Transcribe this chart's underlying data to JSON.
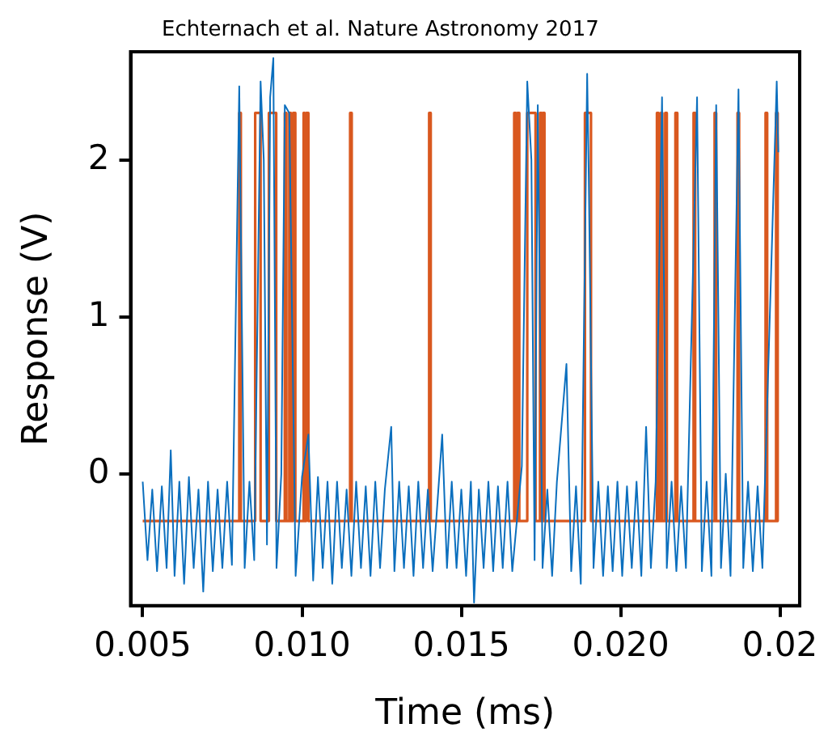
{
  "chart_data": {
    "type": "line",
    "xlabel": "Time (ms)",
    "ylabel": "Response (V)",
    "annotations": [
      "Echternach et al. Nature Astronomy 2017"
    ],
    "xlim": [
      0.00462,
      0.02562
    ],
    "ylim": [
      -0.84,
      2.69
    ],
    "xticks": [
      0.005,
      {
        "value": 0.01,
        "label": "0.010"
      },
      {
        "value": 0.015,
        "label": "0.015"
      },
      {
        "value": 0.02,
        "label": "0.020"
      },
      {
        "value": 0.025,
        "label": "0.02"
      }
    ],
    "yticks": [
      0,
      1,
      2
    ],
    "grid": false,
    "legend": false,
    "marker": "none",
    "line_style": "solid",
    "series": [
      {
        "color": "#0b6fbe",
        "x": [
          0.005,
          0.00515,
          0.0053,
          0.00545,
          0.0056,
          0.00575,
          0.00588,
          0.006,
          0.00615,
          0.0063,
          0.00645,
          0.0066,
          0.00675,
          0.0069,
          0.00705,
          0.0072,
          0.00735,
          0.0075,
          0.00765,
          0.0078,
          0.00803,
          0.0082,
          0.00835,
          0.0085,
          0.0087,
          0.0088,
          0.0089,
          0.009,
          0.0091,
          0.0092,
          0.00935,
          0.00946,
          0.0096,
          0.0098,
          0.01,
          0.0102,
          0.01035,
          0.0105,
          0.01065,
          0.0108,
          0.01095,
          0.0111,
          0.01125,
          0.0114,
          0.01155,
          0.0117,
          0.01185,
          0.012,
          0.01215,
          0.0123,
          0.01245,
          0.0126,
          0.0128,
          0.0129,
          0.01305,
          0.0132,
          0.01335,
          0.0135,
          0.01365,
          0.0138,
          0.01395,
          0.0141,
          0.0144,
          0.01455,
          0.0147,
          0.01485,
          0.015,
          0.01515,
          0.0153,
          0.0154,
          0.01555,
          0.0157,
          0.01585,
          0.016,
          0.01615,
          0.0163,
          0.01645,
          0.0166,
          0.0169,
          0.01707,
          0.0172,
          0.0173,
          0.0174,
          0.01755,
          0.0177,
          0.01785,
          0.018,
          0.0183,
          0.01845,
          0.0186,
          0.01875,
          0.01895,
          0.019,
          0.01915,
          0.0193,
          0.01945,
          0.0196,
          0.01975,
          0.0199,
          0.02005,
          0.0202,
          0.02035,
          0.0205,
          0.02065,
          0.0208,
          0.02095,
          0.0211,
          0.0213,
          0.02145,
          0.0216,
          0.02175,
          0.0219,
          0.02205,
          0.0224,
          0.02255,
          0.0227,
          0.02285,
          0.023,
          0.02315,
          0.0233,
          0.02345,
          0.0237,
          0.02385,
          0.024,
          0.02415,
          0.0243,
          0.02445,
          0.0249,
          0.02495
        ],
        "values": [
          -0.05,
          -0.55,
          -0.1,
          -0.62,
          -0.08,
          -0.6,
          0.15,
          -0.65,
          -0.05,
          -0.7,
          -0.02,
          -0.6,
          -0.1,
          -0.75,
          -0.05,
          -0.62,
          -0.1,
          -0.6,
          -0.05,
          -0.58,
          2.47,
          -0.6,
          -0.05,
          -0.55,
          2.5,
          2.0,
          -0.45,
          2.4,
          2.65,
          -0.6,
          0.0,
          2.35,
          2.3,
          -0.65,
          -0.02,
          0.25,
          -0.68,
          -0.02,
          -0.6,
          -0.05,
          -0.7,
          -0.05,
          -0.6,
          -0.1,
          -0.65,
          -0.05,
          -0.6,
          -0.08,
          -0.65,
          -0.05,
          -0.6,
          -0.1,
          0.3,
          -0.62,
          -0.05,
          -0.6,
          -0.08,
          -0.65,
          -0.05,
          -0.6,
          -0.1,
          -0.62,
          0.25,
          -0.6,
          -0.05,
          -0.6,
          -0.1,
          -0.65,
          -0.05,
          -0.82,
          -0.1,
          -0.6,
          -0.05,
          -0.62,
          -0.08,
          -0.6,
          -0.05,
          -0.62,
          0.05,
          2.5,
          2.0,
          -0.55,
          2.35,
          -0.6,
          -0.1,
          -0.65,
          -0.05,
          0.7,
          -0.62,
          -0.08,
          -0.7,
          2.55,
          1.9,
          -0.6,
          -0.05,
          -0.65,
          -0.08,
          -0.62,
          -0.05,
          -0.65,
          -0.08,
          -0.6,
          -0.05,
          -0.65,
          0.3,
          -0.6,
          -0.05,
          2.4,
          -0.6,
          -0.05,
          -0.62,
          -0.08,
          -0.6,
          2.4,
          -0.62,
          -0.05,
          -0.65,
          2.35,
          -0.6,
          0.0,
          -0.65,
          2.45,
          -0.6,
          -0.05,
          -0.62,
          -0.08,
          -0.6,
          2.5,
          2.05
        ]
      },
      {
        "color": "#d9581f",
        "x": [
          0.005,
          0.00803,
          0.00803,
          0.00808,
          0.00808,
          0.00853,
          0.00853,
          0.0087,
          0.0087,
          0.00896,
          0.00896,
          0.00919,
          0.00919,
          0.00946,
          0.00946,
          0.00951,
          0.00951,
          0.0096,
          0.0096,
          0.00965,
          0.00965,
          0.00972,
          0.00972,
          0.00979,
          0.00979,
          0.01005,
          0.01005,
          0.01008,
          0.01008,
          0.01013,
          0.01013,
          0.0102,
          0.0102,
          0.01151,
          0.01151,
          0.01156,
          0.01156,
          0.01399,
          0.01399,
          0.01404,
          0.01404,
          0.01666,
          0.01666,
          0.01671,
          0.01671,
          0.01676,
          0.01676,
          0.01682,
          0.01682,
          0.01707,
          0.01707,
          0.01733,
          0.01733,
          0.01747,
          0.01747,
          0.01752,
          0.01752,
          0.01756,
          0.01756,
          0.01761,
          0.01761,
          0.01888,
          0.01888,
          0.01907,
          0.01907,
          0.02114,
          0.02114,
          0.02119,
          0.02119,
          0.02126,
          0.02126,
          0.02131,
          0.02131,
          0.0214,
          0.0214,
          0.02145,
          0.02145,
          0.02172,
          0.02172,
          0.02178,
          0.02178,
          0.02229,
          0.02229,
          0.02234,
          0.02234,
          0.02295,
          0.02295,
          0.023,
          0.023,
          0.02367,
          0.02367,
          0.02372,
          0.02372,
          0.02455,
          0.02455,
          0.0246,
          0.0246,
          0.02488,
          0.02488,
          0.02493,
          0.02493
        ],
        "values": [
          -0.3,
          -0.3,
          2.3,
          2.3,
          -0.3,
          -0.3,
          2.3,
          2.3,
          -0.3,
          -0.3,
          2.3,
          2.3,
          -0.3,
          -0.3,
          2.3,
          2.3,
          -0.3,
          -0.3,
          2.3,
          2.3,
          -0.3,
          -0.3,
          2.3,
          2.3,
          -0.3,
          -0.3,
          2.3,
          2.3,
          -0.3,
          -0.3,
          2.3,
          2.3,
          -0.3,
          -0.3,
          2.3,
          2.3,
          -0.3,
          -0.3,
          2.3,
          2.3,
          -0.3,
          -0.3,
          2.3,
          2.3,
          -0.3,
          -0.3,
          2.3,
          2.3,
          -0.3,
          -0.3,
          2.3,
          2.3,
          -0.3,
          -0.3,
          2.3,
          2.3,
          -0.3,
          -0.3,
          2.3,
          2.3,
          -0.3,
          -0.3,
          2.3,
          2.3,
          -0.3,
          -0.3,
          2.3,
          2.3,
          -0.3,
          -0.3,
          2.3,
          2.3,
          -0.3,
          -0.3,
          2.3,
          2.3,
          -0.3,
          -0.3,
          2.3,
          2.3,
          -0.3,
          -0.3,
          2.3,
          2.3,
          -0.3,
          -0.3,
          2.3,
          2.3,
          -0.3,
          -0.3,
          2.3,
          2.3,
          -0.3,
          -0.3,
          2.3,
          2.3,
          -0.3,
          -0.3,
          2.3,
          2.3,
          -0.3
        ]
      }
    ]
  }
}
